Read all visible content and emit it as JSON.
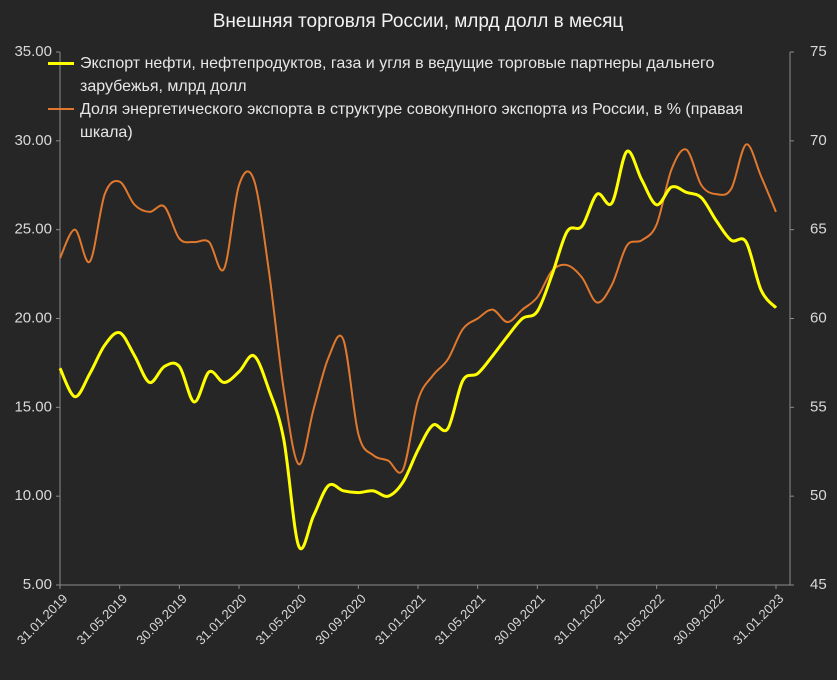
{
  "chart_data": {
    "type": "line",
    "title": "Внешняя торговля России, млрд долл в месяц",
    "categories": [
      "31.01.2019",
      null,
      null,
      null,
      "31.05.2019",
      null,
      null,
      null,
      "30.09.2019",
      null,
      null,
      null,
      "31.01.2020",
      null,
      null,
      null,
      "31.05.2020",
      null,
      null,
      null,
      "30.09.2020",
      null,
      null,
      null,
      "31.01.2021",
      null,
      null,
      null,
      "31.05.2021",
      null,
      null,
      null,
      "30.09.2021",
      null,
      null,
      null,
      "31.01.2022",
      null,
      null,
      null,
      "31.05.2022",
      null,
      null,
      null,
      "30.09.2022",
      null,
      null,
      null,
      "31.01.2023"
    ],
    "series": [
      {
        "name": "Экспорт нефти, нефтепродуктов, газа и угля в ведущие торговые партнеры дальнего зарубежья, млрд долл",
        "color": "#ffff00",
        "values": [
          17.2,
          15.6,
          16.9,
          18.5,
          19.2,
          17.9,
          16.4,
          17.3,
          17.3,
          15.3,
          17.0,
          16.4,
          17.0,
          17.9,
          16.0,
          13.2,
          7.2,
          8.9,
          10.6,
          10.3,
          10.2,
          10.3,
          10.0,
          10.8,
          12.6,
          14.0,
          13.8,
          16.5,
          16.9,
          17.9,
          19.0,
          20.0,
          20.4,
          22.5,
          24.9,
          25.2,
          27.0,
          26.5,
          29.4,
          27.8,
          26.4,
          27.4,
          27.1,
          26.8,
          25.5,
          24.4,
          24.3,
          21.6,
          20.6
        ]
      },
      {
        "name": "Доля энергетического экспорта в структуре совокупного экспорта из России, в % (правая шкала)",
        "color": "#e0782e",
        "axis": "y2",
        "values": [
          63.4,
          65.0,
          63.2,
          67.0,
          67.7,
          66.4,
          66.0,
          66.3,
          64.5,
          64.3,
          64.3,
          62.8,
          67.5,
          67.8,
          62.7,
          56.0,
          51.8,
          54.9,
          57.8,
          58.8,
          53.5,
          52.3,
          52.0,
          51.5,
          55.4,
          56.8,
          57.7,
          59.4,
          60.0,
          60.5,
          59.8,
          60.5,
          61.2,
          62.7,
          63.0,
          62.3,
          60.9,
          61.9,
          64.1,
          64.4,
          65.3,
          68.4,
          69.5,
          67.5,
          67.0,
          67.3,
          69.8,
          68.0,
          66.0
        ]
      }
    ],
    "ylim": [
      5,
      35
    ],
    "yticks": [
      {
        "value": 5,
        "label": "5.00"
      },
      {
        "value": 10,
        "label": "10.00"
      },
      {
        "value": 15,
        "label": "15.00"
      },
      {
        "value": 20,
        "label": "20.00"
      },
      {
        "value": 25,
        "label": "25.00"
      },
      {
        "value": 30,
        "label": "30.00"
      },
      {
        "value": 35,
        "label": "35.00"
      }
    ],
    "y2lim": [
      45,
      75
    ],
    "y2ticks": [
      45,
      50,
      55,
      60,
      65,
      70,
      75
    ],
    "grid": false,
    "legend": "top-left"
  }
}
